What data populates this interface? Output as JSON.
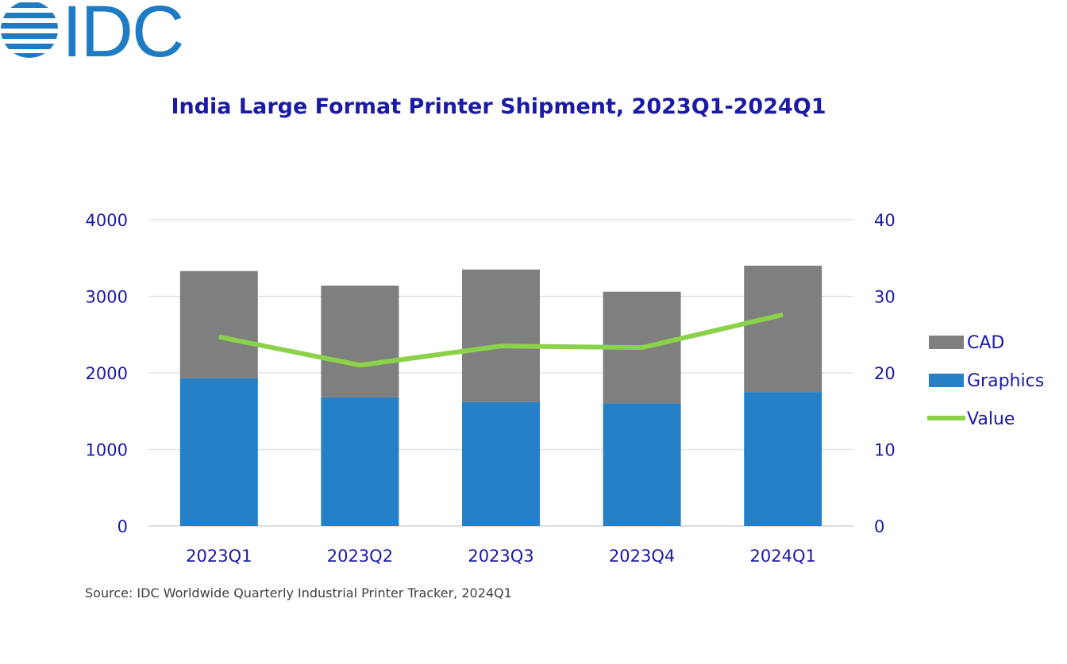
{
  "logo": {
    "text": "IDC",
    "color": "#1f7cc4"
  },
  "source_note": "Source: IDC Worldwide Quarterly Industrial Printer Tracker, 2024Q1",
  "chart_data": {
    "type": "bar",
    "stacked": true,
    "title": "India Large Format Printer Shipment, 2023Q1-2024Q1",
    "xlabel": "",
    "ylabel": "",
    "categories": [
      "2023Q1",
      "2023Q2",
      "2023Q3",
      "2023Q4",
      "2024Q1"
    ],
    "ylim": [
      0,
      4000
    ],
    "yticks": [
      0,
      1000,
      2000,
      3000,
      4000
    ],
    "y2lim": [
      0,
      40
    ],
    "y2ticks": [
      0,
      10,
      20,
      30,
      40
    ],
    "grid": true,
    "legend_position": "right",
    "series": [
      {
        "name": "Graphics",
        "kind": "bar",
        "axis": "left",
        "color": "#2580c8",
        "values": [
          1930,
          1680,
          1620,
          1600,
          1750
        ]
      },
      {
        "name": "CAD",
        "kind": "bar",
        "axis": "left",
        "color": "#7f7f7f",
        "values": [
          1400,
          1460,
          1730,
          1460,
          1650
        ]
      },
      {
        "name": "Value",
        "kind": "line",
        "axis": "right",
        "color": "#8cd14a",
        "values": [
          24.7,
          21.0,
          23.5,
          23.3,
          27.6
        ]
      }
    ],
    "legend": [
      "CAD",
      "Graphics",
      "Value"
    ]
  }
}
